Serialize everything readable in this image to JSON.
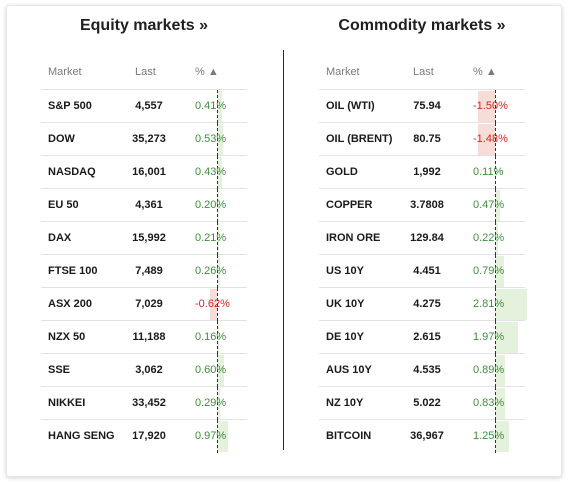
{
  "colors": {
    "positive_text": "#3f8f3a",
    "negative_text": "#cc2a1f",
    "positive_bar": "#e3f1dd",
    "negative_bar": "#f8dcd8"
  },
  "panels": [
    {
      "title": "Equity markets »",
      "headers": {
        "market": "Market",
        "last": "Last",
        "pct": "% ▲"
      },
      "rows": [
        {
          "market": "S&P 500",
          "last": "4,557",
          "pct": "0.41%",
          "change": 0.41
        },
        {
          "market": "DOW",
          "last": "35,273",
          "pct": "0.53%",
          "change": 0.53
        },
        {
          "market": "NASDAQ",
          "last": "16,001",
          "pct": "0.43%",
          "change": 0.43
        },
        {
          "market": "EU 50",
          "last": "4,361",
          "pct": "0.20%",
          "change": 0.2
        },
        {
          "market": "DAX",
          "last": "15,992",
          "pct": "0.21%",
          "change": 0.21
        },
        {
          "market": "FTSE 100",
          "last": "7,489",
          "pct": "0.26%",
          "change": 0.26
        },
        {
          "market": "ASX 200",
          "last": "7,029",
          "pct": "-0.62%",
          "change": -0.62
        },
        {
          "market": "NZX 50",
          "last": "11,188",
          "pct": "0.16%",
          "change": 0.16
        },
        {
          "market": "SSE",
          "last": "3,062",
          "pct": "0.60%",
          "change": 0.6
        },
        {
          "market": "NIKKEI",
          "last": "33,452",
          "pct": "0.29%",
          "change": 0.29
        },
        {
          "market": "HANG SENG",
          "last": "17,920",
          "pct": "0.97%",
          "change": 0.97
        }
      ]
    },
    {
      "title": "Commodity markets »",
      "headers": {
        "market": "Market",
        "last": "Last",
        "pct": "% ▲"
      },
      "rows": [
        {
          "market": "OIL (WTI)",
          "last": "75.94",
          "pct": "-1.50%",
          "change": -1.5
        },
        {
          "market": "OIL (BRENT)",
          "last": "80.75",
          "pct": "-1.48%",
          "change": -1.48
        },
        {
          "market": "GOLD",
          "last": "1,992",
          "pct": "0.11%",
          "change": 0.11
        },
        {
          "market": "COPPER",
          "last": "3.7808",
          "pct": "0.47%",
          "change": 0.47
        },
        {
          "market": "IRON ORE",
          "last": "129.84",
          "pct": "0.22%",
          "change": 0.22
        },
        {
          "market": "US 10Y",
          "last": "4.451",
          "pct": "0.79%",
          "change": 0.79
        },
        {
          "market": "UK 10Y",
          "last": "4.275",
          "pct": "2.81%",
          "change": 2.81
        },
        {
          "market": "DE 10Y",
          "last": "2.615",
          "pct": "1.97%",
          "change": 1.97
        },
        {
          "market": "AUS 10Y",
          "last": "4.535",
          "pct": "0.89%",
          "change": 0.89
        },
        {
          "market": "NZ 10Y",
          "last": "5.022",
          "pct": "0.83%",
          "change": 0.83
        },
        {
          "market": "BITCOIN",
          "last": "36,967",
          "pct": "1.25%",
          "change": 1.25
        }
      ]
    }
  ]
}
